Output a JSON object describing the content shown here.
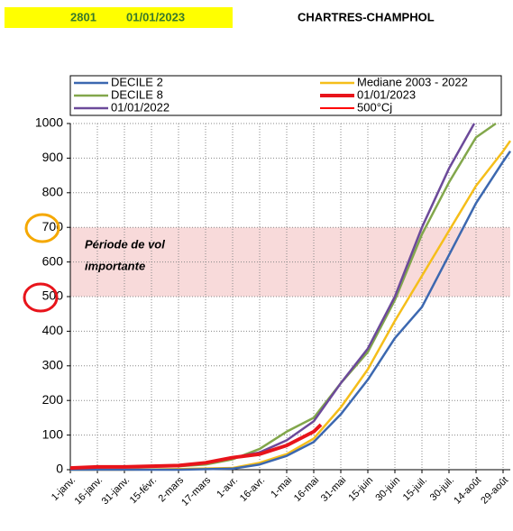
{
  "header": {
    "code": "2801",
    "date": "01/01/2023",
    "station": "CHARTRES-CHAMPHOL"
  },
  "chart_data": {
    "type": "line",
    "series": [
      {
        "name": "DECILE 2",
        "color": "#3c68b0",
        "width": 2.5,
        "x": [
          0,
          30,
          60,
          90,
          105,
          120,
          135,
          150,
          165,
          180,
          195,
          210,
          225,
          240,
          244
        ],
        "values": [
          0,
          0,
          0,
          3,
          15,
          40,
          80,
          160,
          260,
          380,
          470,
          620,
          770,
          890,
          920
        ]
      },
      {
        "name": "DECILE 8",
        "color": "#82a74b",
        "width": 2.5,
        "x": [
          0,
          30,
          60,
          75,
          90,
          105,
          120,
          135,
          150,
          165,
          180,
          195,
          210,
          225,
          236
        ],
        "values": [
          5,
          8,
          10,
          15,
          30,
          60,
          110,
          150,
          250,
          340,
          490,
          680,
          830,
          960,
          1000
        ]
      },
      {
        "name": "01/01/2022",
        "color": "#6c4a9a",
        "width": 2.5,
        "x": [
          0,
          30,
          60,
          75,
          90,
          105,
          120,
          135,
          150,
          165,
          180,
          195,
          210,
          224
        ],
        "values": [
          5,
          8,
          12,
          20,
          35,
          50,
          85,
          140,
          250,
          350,
          500,
          700,
          870,
          1000
        ]
      },
      {
        "name": "Mediane 2003 - 2022",
        "color": "#f5be1a",
        "width": 2.5,
        "x": [
          0,
          30,
          60,
          90,
          105,
          120,
          135,
          150,
          165,
          180,
          195,
          210,
          225,
          240,
          244
        ],
        "values": [
          0,
          0,
          2,
          5,
          20,
          45,
          90,
          180,
          290,
          430,
          560,
          690,
          820,
          920,
          950
        ]
      },
      {
        "name": "01/01/2023",
        "color": "#e8141b",
        "width": 4,
        "x": [
          0,
          15,
          30,
          45,
          60,
          75,
          90,
          105,
          120,
          135,
          139
        ],
        "values": [
          5,
          8,
          8,
          10,
          12,
          20,
          35,
          45,
          70,
          110,
          130
        ]
      },
      {
        "name": "500°Cj",
        "color": "#ff0000",
        "width": 2,
        "x": [
          0,
          244
        ],
        "values": [
          null,
          null
        ]
      }
    ],
    "band": {
      "range": [
        500,
        700
      ],
      "color": "#f8dada",
      "label_lines": [
        "Période de vol",
        "importante"
      ]
    },
    "xlim": [
      0,
      244
    ],
    "xticks": [
      {
        "value": 0,
        "label": "1-janv."
      },
      {
        "value": 15,
        "label": "16-janv."
      },
      {
        "value": 30,
        "label": "31-janv."
      },
      {
        "value": 45,
        "label": "15-févr."
      },
      {
        "value": 60,
        "label": "2-mars"
      },
      {
        "value": 75,
        "label": "17-mars"
      },
      {
        "value": 90,
        "label": "1-avr."
      },
      {
        "value": 105,
        "label": "16-avr."
      },
      {
        "value": 120,
        "label": "1-mai"
      },
      {
        "value": 135,
        "label": "16-mai"
      },
      {
        "value": 150,
        "label": "31-mai"
      },
      {
        "value": 165,
        "label": "15-juin"
      },
      {
        "value": 180,
        "label": "30-juin"
      },
      {
        "value": 195,
        "label": "15-juil."
      },
      {
        "value": 210,
        "label": "30-juil."
      },
      {
        "value": 225,
        "label": "14-août"
      },
      {
        "value": 240,
        "label": "29-août"
      }
    ],
    "ylim": [
      0,
      1000
    ],
    "yticks": [
      0,
      100,
      200,
      300,
      400,
      500,
      600,
      700,
      800,
      900,
      1000
    ],
    "grid": true
  }
}
